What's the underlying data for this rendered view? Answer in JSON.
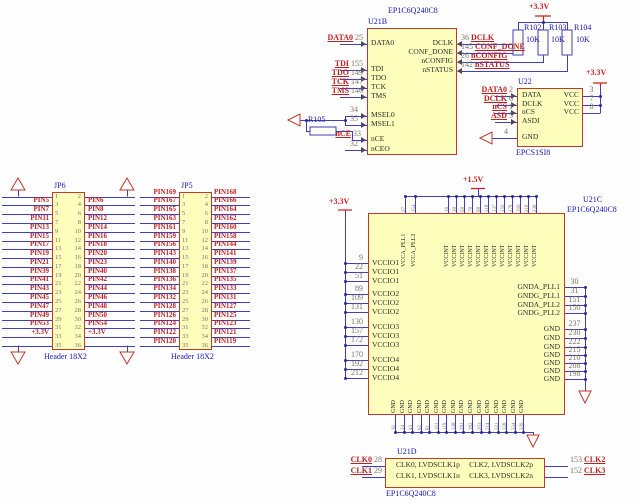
{
  "colors": {
    "component_fill": "#ffffbd",
    "component_border": "#c0392b",
    "wire": "#4040b8",
    "net_label": "#c01f1f",
    "designator": "#1414b4",
    "pin_number": "#7e7464",
    "power": "#cf1d1d"
  },
  "parts": {
    "u21b": {
      "ref": "U21B",
      "device": "EP1C6Q240C8",
      "left": [
        {
          "net": "DATA0",
          "pin": "25",
          "name": "DATA0"
        },
        {
          "net": "TDI",
          "pin": "155",
          "name": "TDI"
        },
        {
          "net": "TDO",
          "pin": "149",
          "name": "TDO"
        },
        {
          "net": "TCK",
          "pin": "147",
          "name": "TCK"
        },
        {
          "net": "TMS",
          "pin": "146",
          "name": "TMS"
        },
        {
          "net": "",
          "pin": "34",
          "name": "MSEL0"
        },
        {
          "net": "",
          "pin": "35",
          "name": "MSEL1"
        },
        {
          "net": "nCE",
          "pin": "33",
          "name": "nCE"
        },
        {
          "net": "",
          "pin": "32",
          "name": "nCEO"
        }
      ],
      "right": [
        {
          "net": "DCLK",
          "pin": "36",
          "name": "DCLK"
        },
        {
          "net": "CONF_DONE",
          "pin": "145",
          "name": "CONF_DONE"
        },
        {
          "net": "nCONFIG",
          "pin": "26",
          "name": "nCONFIG"
        },
        {
          "net": "nSTATUS",
          "pin": "142",
          "name": "nSTATUS"
        }
      ]
    },
    "pullups": {
      "rail": "+3.3V",
      "items": [
        {
          "ref": "R102",
          "value": "10K"
        },
        {
          "ref": "R103",
          "value": "10K"
        },
        {
          "ref": "R104",
          "value": "10K"
        }
      ]
    },
    "r105": {
      "ref": "R105"
    },
    "u22": {
      "ref": "U22",
      "device": "EPCS1SI8",
      "rail": "+3.3V",
      "left": [
        {
          "net": "DATA0",
          "pin": "2",
          "name": "DATA"
        },
        {
          "net": "DCLK",
          "pin": "6",
          "name": "DCLK"
        },
        {
          "net": "nCS",
          "pin": "1",
          "name": "nCS"
        },
        {
          "net": "ASD",
          "pin": "5",
          "name": "ASDI"
        }
      ],
      "gnd": {
        "pin": "4",
        "name": "GND"
      },
      "right": [
        {
          "pin": "3",
          "name": "VCC"
        },
        {
          "pin": "7",
          "name": "VCC"
        },
        {
          "pin": "8",
          "name": "VCC"
        }
      ]
    },
    "jp6": {
      "ref": "JP6",
      "device": "Header 18X2",
      "rows": [
        {
          "l": "",
          "lp": "1",
          "rp": "2",
          "r": ""
        },
        {
          "l": "PIN5",
          "lp": "3",
          "rp": "4",
          "r": "PIN6"
        },
        {
          "l": "PIN7",
          "lp": "5",
          "rp": "6",
          "r": "PIN8"
        },
        {
          "l": "PIN11",
          "lp": "7",
          "rp": "8",
          "r": "PIN12"
        },
        {
          "l": "PIN13",
          "lp": "9",
          "rp": "10",
          "r": "PIN14"
        },
        {
          "l": "PIN15",
          "lp": "11",
          "rp": "12",
          "r": "PIN16"
        },
        {
          "l": "PIN17",
          "lp": "13",
          "rp": "14",
          "r": "PIN18"
        },
        {
          "l": "PIN19",
          "lp": "15",
          "rp": "16",
          "r": "PIN20"
        },
        {
          "l": "PIN21",
          "lp": "17",
          "rp": "18",
          "r": "PIN23"
        },
        {
          "l": "PIN39",
          "lp": "19",
          "rp": "20",
          "r": "PIN40"
        },
        {
          "l": "PIN41",
          "lp": "21",
          "rp": "22",
          "r": "PIN42"
        },
        {
          "l": "PIN43",
          "lp": "23",
          "rp": "24",
          "r": "PIN44"
        },
        {
          "l": "PIN45",
          "lp": "25",
          "rp": "26",
          "r": "PIN46"
        },
        {
          "l": "PIN47",
          "lp": "27",
          "rp": "28",
          "r": "PIN48"
        },
        {
          "l": "PIN49",
          "lp": "29",
          "rp": "30",
          "r": "PIN50"
        },
        {
          "l": "PIN53",
          "lp": "31",
          "rp": "32",
          "r": "PIN54"
        },
        {
          "l": "+3.3V",
          "lp": "33",
          "rp": "34",
          "r": "+3.3V"
        },
        {
          "l": "",
          "lp": "35",
          "rp": "36",
          "r": ""
        }
      ]
    },
    "jp5": {
      "ref": "JP5",
      "device": "Header 18X2",
      "rows": [
        {
          "l": "PIN169",
          "lp": "1",
          "rp": "2",
          "r": "PIN168"
        },
        {
          "l": "PIN167",
          "lp": "3",
          "rp": "4",
          "r": "PIN166"
        },
        {
          "l": "PIN165",
          "lp": "5",
          "rp": "6",
          "r": "PIN164"
        },
        {
          "l": "PIN163",
          "lp": "7",
          "rp": "8",
          "r": "PIN162"
        },
        {
          "l": "PIN161",
          "lp": "9",
          "rp": "10",
          "r": "PIN160"
        },
        {
          "l": "PIN159",
          "lp": "11",
          "rp": "12",
          "r": "PIN158"
        },
        {
          "l": "PIN156",
          "lp": "13",
          "rp": "14",
          "r": "PIN144"
        },
        {
          "l": "PIN143",
          "lp": "15",
          "rp": "16",
          "r": "PIN141"
        },
        {
          "l": "PIN140",
          "lp": "17",
          "rp": "18",
          "r": "PIN139"
        },
        {
          "l": "PIN138",
          "lp": "19",
          "rp": "20",
          "r": "PIN137"
        },
        {
          "l": "PIN136",
          "lp": "21",
          "rp": "22",
          "r": "PIN135"
        },
        {
          "l": "PIN134",
          "lp": "23",
          "rp": "24",
          "r": "PIN133"
        },
        {
          "l": "PIN132",
          "lp": "25",
          "rp": "26",
          "r": "PIN131"
        },
        {
          "l": "PIN128",
          "lp": "27",
          "rp": "28",
          "r": "PIN127"
        },
        {
          "l": "PIN126",
          "lp": "29",
          "rp": "30",
          "r": "PIN125"
        },
        {
          "l": "PIN124",
          "lp": "31",
          "rp": "32",
          "r": "PIN123"
        },
        {
          "l": "PIN122",
          "lp": "33",
          "rp": "34",
          "r": "PIN121"
        },
        {
          "l": "PIN120",
          "lp": "35",
          "rp": "36",
          "r": "PIN119"
        }
      ]
    },
    "u21c": {
      "ref": "U21C",
      "device": "EP1C6Q240C8",
      "left_rail": "+3.3V",
      "top_rail": "+1.5V",
      "left": [
        {
          "pin": "9",
          "name": "VCCIO1"
        },
        {
          "pin": "22",
          "name": "VCCIO1"
        },
        {
          "pin": "51",
          "name": "VCCIO1"
        },
        {
          "pin": "89",
          "name": "VCCIO2"
        },
        {
          "pin": "109",
          "name": "VCCIO2"
        },
        {
          "pin": "131",
          "name": "VCCIO2"
        },
        {
          "pin": "130",
          "name": "VCCIO3"
        },
        {
          "pin": "157",
          "name": "VCCIO3"
        },
        {
          "pin": "172",
          "name": "VCCIO3"
        },
        {
          "pin": "170",
          "name": "VCCIO4"
        },
        {
          "pin": "192",
          "name": "VCCIO4"
        },
        {
          "pin": "212",
          "name": "VCCIO4"
        }
      ],
      "top": [
        {
          "pin": "37",
          "name": "VCCA_PLL1"
        },
        {
          "pin": "154",
          "name": "VCCA_PLL2"
        },
        {
          "pin": "16",
          "name": "VCCINT"
        },
        {
          "pin": "38",
          "name": "VCCINT"
        },
        {
          "pin": "58",
          "name": "VCCINT"
        },
        {
          "pin": "78",
          "name": "VCCINT"
        },
        {
          "pin": "98",
          "name": "VCCINT"
        },
        {
          "pin": "118",
          "name": "VCCINT"
        },
        {
          "pin": "137",
          "name": "VCCINT"
        },
        {
          "pin": "159",
          "name": "VCCINT"
        },
        {
          "pin": "178",
          "name": "VCCINT"
        },
        {
          "pin": "199",
          "name": "VCCINT"
        },
        {
          "pin": "218",
          "name": "VCCINT"
        },
        {
          "pin": "238",
          "name": "VCCINT"
        }
      ],
      "right": [
        {
          "pin": "30",
          "name": "GNDA_PLL1"
        },
        {
          "pin": "31",
          "name": "GNDG_PLL1"
        },
        {
          "pin": "151",
          "name": "GNDA_PLL2"
        },
        {
          "pin": "150",
          "name": "GNDG_PLL2"
        },
        {
          "pin": "237",
          "name": "GND"
        },
        {
          "pin": "230",
          "name": "GND"
        },
        {
          "pin": "222",
          "name": "GND"
        },
        {
          "pin": "215",
          "name": "GND"
        },
        {
          "pin": "210",
          "name": "GND"
        },
        {
          "pin": "208",
          "name": "GND"
        },
        {
          "pin": "198",
          "name": "GND"
        }
      ],
      "bottom": [
        {
          "pin": "10",
          "name": "GND"
        },
        {
          "pin": "24",
          "name": "GND"
        },
        {
          "pin": "43",
          "name": "GND"
        },
        {
          "pin": "62",
          "name": "GND"
        },
        {
          "pin": "81",
          "name": "GND"
        },
        {
          "pin": "101",
          "name": "GND"
        },
        {
          "pin": "119",
          "name": "GND"
        },
        {
          "pin": "138",
          "name": "GND"
        },
        {
          "pin": "161",
          "name": "GND"
        },
        {
          "pin": "182",
          "name": "GND"
        },
        {
          "pin": "203",
          "name": "GND"
        },
        {
          "pin": "214",
          "name": "GND"
        },
        {
          "pin": "221",
          "name": "GND"
        },
        {
          "pin": "228",
          "name": "GND"
        },
        {
          "pin": "234",
          "name": "GND"
        },
        {
          "pin": "239",
          "name": "GND"
        }
      ]
    },
    "u21d": {
      "ref": "U21D",
      "device": "EP1C6Q240C8",
      "left": [
        {
          "net": "CLK0",
          "pin": "28",
          "name": "CLK0, LVDSCLK1p"
        },
        {
          "net": "CLK1",
          "pin": "29",
          "name": "CLK1, LVDSCLK1n"
        }
      ],
      "right": [
        {
          "net": "CLK2",
          "pin": "153",
          "name": "CLK2, LVDSCLK2p"
        },
        {
          "net": "CLK3",
          "pin": "152",
          "name": "CLK3, LVDSCLK2n"
        }
      ]
    }
  }
}
